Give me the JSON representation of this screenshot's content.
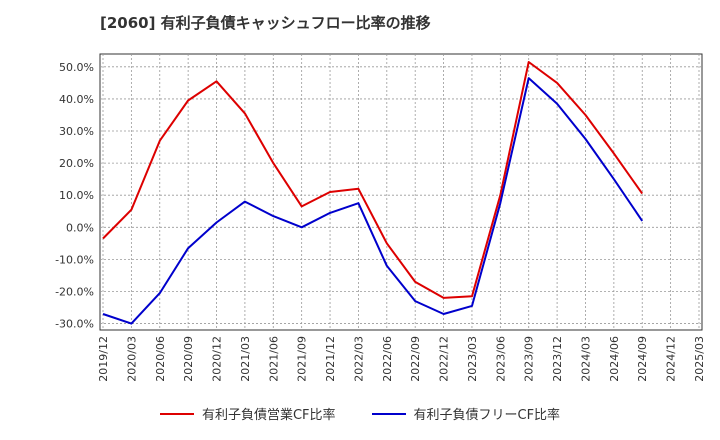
{
  "title": "[2060]  有利子負債キャッシュフロー比率の推移",
  "chart_data": {
    "type": "line",
    "title": "[2060]  有利子負債キャッシュフロー比率の推移",
    "xlabel": "",
    "ylabel": "",
    "ylim": [
      -32,
      54
    ],
    "yticks": [
      -30,
      -20,
      -10,
      0,
      10,
      20,
      30,
      40,
      50
    ],
    "ytick_labels": [
      "-30.0%",
      "-20.0%",
      "-10.0%",
      "0.0%",
      "10.0%",
      "20.0%",
      "30.0%",
      "40.0%",
      "50.0%"
    ],
    "x": [
      "2019/12",
      "2020/03",
      "2020/06",
      "2020/09",
      "2020/12",
      "2021/03",
      "2021/06",
      "2021/09",
      "2021/12",
      "2022/03",
      "2022/06",
      "2022/09",
      "2022/12",
      "2023/03",
      "2023/06",
      "2023/09",
      "2023/12",
      "2024/03",
      "2024/06",
      "2024/09",
      "2024/12",
      "2025/03"
    ],
    "series": [
      {
        "name": "有利子負債営業CF比率",
        "color": "#dd0000",
        "values": [
          -3.5,
          5.5,
          27,
          39.5,
          45.5,
          35.5,
          20,
          6.5,
          11,
          12,
          -5,
          -17,
          -22,
          -21.5,
          10,
          51.5,
          45,
          35,
          23,
          10.5,
          null,
          null
        ]
      },
      {
        "name": "有利子負債フリーCF比率",
        "color": "#0000cc",
        "values": [
          -27,
          -30,
          -20.5,
          -6.5,
          1.5,
          8,
          3.5,
          0,
          4.5,
          7.5,
          -12,
          -23,
          -27,
          -24.5,
          7.5,
          46.5,
          38.5,
          27.5,
          15,
          2,
          null,
          null
        ]
      }
    ],
    "grid": true,
    "legend": "bottom"
  }
}
